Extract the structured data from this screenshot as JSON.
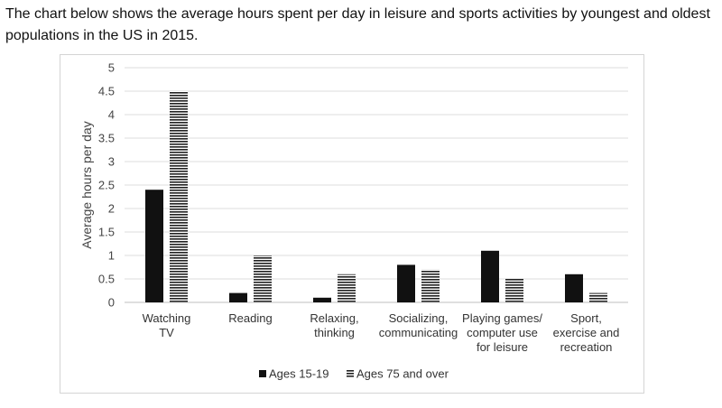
{
  "caption": "The chart below shows the average hours spent per day in leisure and sports activities by youngest and oldest populations in the US in 2015.",
  "chart_data": {
    "type": "bar",
    "title": "",
    "xlabel": "",
    "ylabel": "Average hours per day",
    "ylim": [
      0,
      5
    ],
    "yticks": [
      "0",
      "0.5",
      "1",
      "1.5",
      "2",
      "2.5",
      "3",
      "3.5",
      "4",
      "4.5",
      "5"
    ],
    "grid": true,
    "legend_position": "bottom",
    "categories": [
      [
        "Watching",
        "TV"
      ],
      [
        "Reading"
      ],
      [
        "Relaxing,",
        "thinking"
      ],
      [
        "Socializing,",
        "communicating"
      ],
      [
        "Playing games/",
        "computer use",
        "for leisure"
      ],
      [
        "Sport,",
        "exercise and",
        "recreation"
      ]
    ],
    "series": [
      {
        "name": "Ages 15-19",
        "fill": "solid",
        "color": "#111111",
        "values": [
          2.4,
          0.2,
          0.1,
          0.8,
          1.1,
          0.6
        ]
      },
      {
        "name": "Ages 75 and over",
        "fill": "horizontal-stripes",
        "color": "#222222",
        "values": [
          4.5,
          1.0,
          0.6,
          0.7,
          0.5,
          0.2
        ]
      }
    ]
  }
}
